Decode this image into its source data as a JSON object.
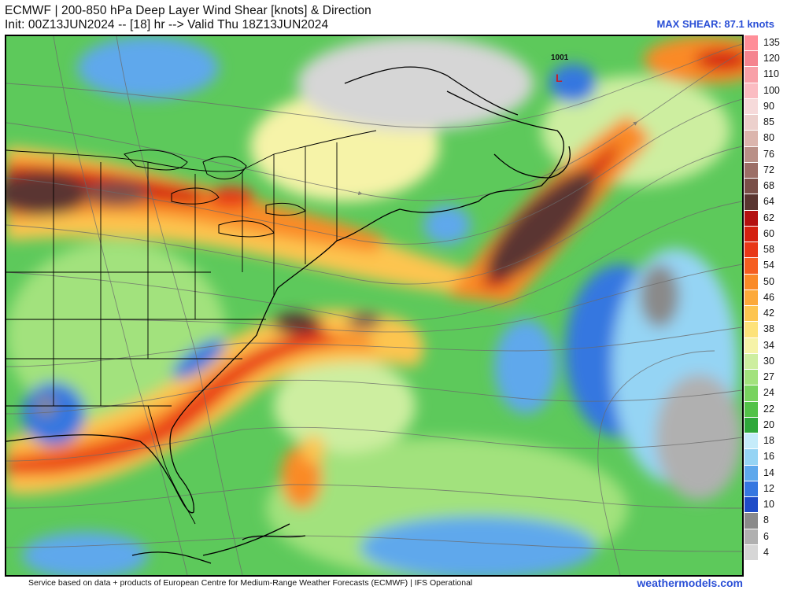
{
  "header": {
    "title": "ECMWF | 200-850 hPa Deep Layer Wind Shear [knots] & Direction",
    "subtitle": "Init: 00Z13JUN2024 -- [18] hr --> Valid Thu 18Z13JUN2024",
    "max_shear": "MAX SHEAR: 87.1 knots"
  },
  "map": {
    "low_pressure_value": "1001",
    "low_pressure_symbol": "L"
  },
  "colorbar": {
    "levels": [
      {
        "label": "135",
        "color": "#ff8e98"
      },
      {
        "label": "120",
        "color": "#f5848f"
      },
      {
        "label": "110",
        "color": "#f8a0a8"
      },
      {
        "label": "100",
        "color": "#fbbcc2"
      },
      {
        "label": "90",
        "color": "#f6dada"
      },
      {
        "label": "85",
        "color": "#ecd0cc"
      },
      {
        "label": "80",
        "color": "#dbb5ad"
      },
      {
        "label": "76",
        "color": "#b99087"
      },
      {
        "label": "72",
        "color": "#9c6e66"
      },
      {
        "label": "68",
        "color": "#7a4f48"
      },
      {
        "label": "64",
        "color": "#5a3530"
      },
      {
        "label": "62",
        "color": "#b41010"
      },
      {
        "label": "60",
        "color": "#d42010"
      },
      {
        "label": "58",
        "color": "#e83818"
      },
      {
        "label": "54",
        "color": "#f55e20"
      },
      {
        "label": "50",
        "color": "#fa8a28"
      },
      {
        "label": "46",
        "color": "#fca93a"
      },
      {
        "label": "42",
        "color": "#fdc550"
      },
      {
        "label": "38",
        "color": "#fde27a"
      },
      {
        "label": "34",
        "color": "#f6f3a8"
      },
      {
        "label": "30",
        "color": "#cdeea0"
      },
      {
        "label": "27",
        "color": "#a2e27d"
      },
      {
        "label": "24",
        "color": "#78d35f"
      },
      {
        "label": "22",
        "color": "#52c248"
      },
      {
        "label": "20",
        "color": "#2ea83a"
      },
      {
        "label": "18",
        "color": "#c5ecfa"
      },
      {
        "label": "16",
        "color": "#95d4f4"
      },
      {
        "label": "14",
        "color": "#5ea8ec"
      },
      {
        "label": "12",
        "color": "#3677e0"
      },
      {
        "label": "10",
        "color": "#1f4cc8"
      },
      {
        "label": "8",
        "color": "#8a8a8a"
      },
      {
        "label": "6",
        "color": "#b0b0b0"
      },
      {
        "label": "4",
        "color": "#d6d6d6"
      }
    ]
  },
  "footer": {
    "credit": "Service based on data + products of European Centre for Medium-Range Weather Forecasts (ECMWF) | IFS Operational",
    "site": "weathermodels.com"
  }
}
